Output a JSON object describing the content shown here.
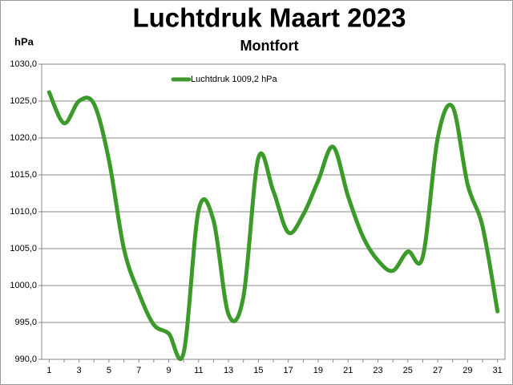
{
  "chart_data": {
    "type": "line",
    "title": "Luchtdruk Maart 2023",
    "subtitle": "Montfort",
    "y_label": "hPa",
    "categories": [
      "1",
      null,
      "3",
      null,
      "5",
      null,
      "7",
      null,
      "9",
      null,
      "11",
      null,
      "13",
      null,
      "15",
      null,
      "17",
      null,
      "19",
      null,
      "21",
      null,
      "23",
      null,
      "25",
      null,
      "27",
      null,
      "29",
      null,
      "31"
    ],
    "series": [
      {
        "name": "Luchtdruk 1009,2 hPa",
        "color": "#3c9a2a",
        "values": [
          1026.2,
          1022.0,
          1025.0,
          1024.6,
          1017.0,
          1005.0,
          999.0,
          994.7,
          993.5,
          990.9,
          1010.2,
          1008.8,
          996.1,
          998.5,
          1017.3,
          1012.8,
          1007.2,
          1009.6,
          1014.2,
          1018.8,
          1012.1,
          1006.6,
          1003.4,
          1002.0,
          1004.6,
          1003.9,
          1020.0,
          1024.2,
          1013.7,
          1008.0,
          996.5
        ]
      }
    ],
    "ylim": [
      990,
      1030
    ],
    "yticks": [
      {
        "value": 990,
        "label": "990,0"
      },
      {
        "value": 995,
        "label": "995,0"
      },
      {
        "value": 1000,
        "label": "1000,0"
      },
      {
        "value": 1005,
        "label": "1005,0"
      },
      {
        "value": 1010,
        "label": "1010,0"
      },
      {
        "value": 1015,
        "label": "1015,0"
      },
      {
        "value": 1020,
        "label": "1020,0"
      },
      {
        "value": 1025,
        "label": "1025,0"
      },
      {
        "value": 1030,
        "label": "1030,0"
      }
    ],
    "grid": true
  }
}
